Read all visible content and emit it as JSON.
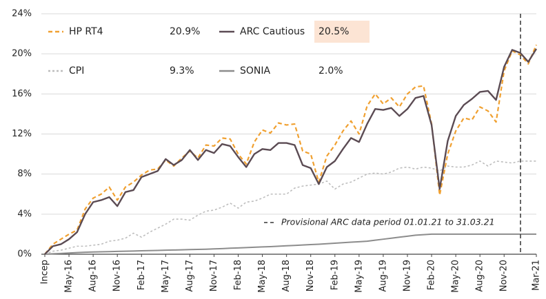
{
  "chart_data": {
    "type": "line",
    "categories": [
      "Incep",
      null,
      null,
      "May-16",
      null,
      null,
      "Aug-16",
      null,
      null,
      "Nov-16",
      null,
      null,
      "Feb-17",
      null,
      null,
      "May-17",
      null,
      null,
      "Aug-17",
      null,
      null,
      "Nov-17",
      null,
      null,
      "Feb-18",
      null,
      null,
      "May-18",
      null,
      null,
      "Aug-18",
      null,
      null,
      "Nov-18",
      null,
      null,
      "Feb-19",
      null,
      null,
      "May-19",
      null,
      null,
      "Aug-19",
      null,
      null,
      "Nov-19",
      null,
      null,
      "Feb-20",
      null,
      null,
      "May-20",
      null,
      null,
      "Aug-20",
      null,
      null,
      "Nov-20",
      null,
      null,
      null,
      "Mar-21"
    ],
    "series": [
      {
        "name": "HP RT4",
        "legend_value": "20.9%",
        "color": "#f0a030",
        "dash": "6,4",
        "width": 2.2,
        "values": [
          0,
          1.0,
          1.5,
          2.0,
          2.4,
          4.5,
          5.6,
          6.0,
          6.7,
          5.4,
          6.7,
          7.2,
          7.9,
          8.4,
          8.5,
          9.4,
          8.8,
          9.6,
          10.3,
          9.6,
          10.9,
          10.8,
          11.6,
          11.5,
          10.0,
          9.0,
          11.2,
          12.4,
          12.1,
          13.1,
          12.9,
          13.0,
          10.3,
          10.0,
          7.2,
          9.8,
          10.9,
          12.3,
          13.3,
          12.0,
          14.8,
          16.0,
          15.0,
          15.6,
          14.7,
          16.0,
          16.7,
          16.8,
          13.0,
          5.9,
          10.0,
          12.3,
          13.6,
          13.4,
          14.7,
          14.3,
          13.2,
          18.3,
          20.3,
          19.9,
          19.0,
          20.9
        ]
      },
      {
        "name": "ARC Cautious",
        "legend_value": "20.5%",
        "color": "#5b4b53",
        "dash": "",
        "width": 2.4,
        "values": [
          0,
          0.8,
          1.0,
          1.5,
          2.2,
          4.0,
          5.2,
          5.4,
          5.7,
          4.8,
          6.2,
          6.4,
          7.7,
          8.0,
          8.3,
          9.5,
          8.9,
          9.4,
          10.4,
          9.4,
          10.4,
          10.1,
          11.0,
          10.8,
          9.7,
          8.7,
          10.0,
          10.5,
          10.4,
          11.1,
          11.1,
          10.9,
          8.9,
          8.6,
          7.0,
          8.7,
          9.3,
          10.5,
          11.6,
          11.2,
          13.0,
          14.5,
          14.4,
          14.6,
          13.8,
          14.5,
          15.6,
          15.8,
          12.9,
          6.5,
          11.3,
          13.8,
          14.9,
          15.5,
          16.2,
          16.3,
          15.4,
          18.7,
          20.4,
          20.1,
          19.2,
          20.5
        ]
      },
      {
        "name": "CPI",
        "legend_value": "9.3%",
        "color": "#bdbdbd",
        "dash": "3,3",
        "width": 1.6,
        "values": [
          0,
          0.3,
          0.4,
          0.6,
          0.8,
          0.8,
          0.9,
          1.0,
          1.3,
          1.4,
          1.6,
          2.1,
          1.7,
          2.2,
          2.6,
          3.0,
          3.5,
          3.5,
          3.4,
          3.9,
          4.3,
          4.4,
          4.7,
          5.1,
          4.6,
          5.2,
          5.3,
          5.6,
          6.0,
          6.0,
          6.0,
          6.6,
          6.8,
          6.9,
          7.0,
          7.3,
          6.5,
          7.0,
          7.2,
          7.6,
          8.0,
          8.1,
          8.0,
          8.2,
          8.6,
          8.7,
          8.5,
          8.7,
          8.6,
          8.3,
          8.8,
          8.7,
          8.7,
          8.9,
          9.3,
          8.8,
          9.3,
          9.2,
          9.1,
          9.3,
          9.3,
          9.3
        ]
      },
      {
        "name": "SONIA",
        "legend_value": "2.0%",
        "color": "#8c8c8c",
        "dash": "",
        "width": 2,
        "values": [
          0,
          0.04,
          0.08,
          0.12,
          0.16,
          0.2,
          0.22,
          0.24,
          0.26,
          0.28,
          0.3,
          0.32,
          0.34,
          0.36,
          0.38,
          0.4,
          0.42,
          0.44,
          0.46,
          0.48,
          0.5,
          0.53,
          0.56,
          0.6,
          0.63,
          0.66,
          0.7,
          0.73,
          0.76,
          0.8,
          0.84,
          0.88,
          0.92,
          0.96,
          1.0,
          1.05,
          1.1,
          1.15,
          1.2,
          1.25,
          1.3,
          1.4,
          1.5,
          1.6,
          1.7,
          1.8,
          1.9,
          1.95,
          2.0,
          2.0,
          2.0,
          2.0,
          2.0,
          2.0,
          2.0,
          2.0,
          2.0,
          2.0,
          2.0,
          2.0,
          2.0,
          2.0
        ]
      }
    ],
    "ylim": [
      0,
      24
    ],
    "yticks": [
      {
        "value": 0,
        "label": "0%"
      },
      {
        "value": 4,
        "label": "4%"
      },
      {
        "value": 8,
        "label": "8%"
      },
      {
        "value": 12,
        "label": "12%"
      },
      {
        "value": 16,
        "label": "16%"
      },
      {
        "value": 20,
        "label": "20%"
      },
      {
        "value": 24,
        "label": "24%"
      }
    ],
    "grid": true,
    "annotation": "Provisional ARC data period 01.01.21 to 31.03.21"
  }
}
